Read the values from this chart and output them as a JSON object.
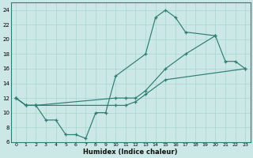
{
  "xlabel": "Humidex (Indice chaleur)",
  "bg_color": "#cce8e6",
  "line_color": "#2d7d72",
  "grid_color": "#a8d4d0",
  "xlim": [
    -0.5,
    23.5
  ],
  "ylim": [
    6,
    25
  ],
  "xticks": [
    0,
    1,
    2,
    3,
    4,
    5,
    6,
    7,
    8,
    9,
    10,
    11,
    12,
    13,
    14,
    15,
    16,
    17,
    18,
    19,
    20,
    21,
    22,
    23
  ],
  "yticks": [
    6,
    8,
    10,
    12,
    14,
    16,
    18,
    20,
    22,
    24
  ],
  "line1_x": [
    0,
    1,
    2,
    3,
    4,
    5,
    6,
    7,
    8,
    9,
    10,
    13,
    14,
    15,
    16,
    17,
    20
  ],
  "line1_y": [
    12,
    11,
    11,
    9,
    9,
    7,
    7,
    6.5,
    10,
    10,
    15,
    18,
    23,
    24,
    23,
    21,
    20.5
  ],
  "line2_x": [
    0,
    1,
    2,
    10,
    11,
    12,
    13,
    15,
    17,
    20,
    21,
    22,
    23
  ],
  "line2_y": [
    12,
    11,
    11,
    12,
    12,
    12,
    13,
    16,
    18,
    20.5,
    17,
    17,
    16
  ],
  "line3_x": [
    0,
    1,
    2,
    10,
    11,
    12,
    13,
    15,
    23
  ],
  "line3_y": [
    12,
    11,
    11,
    11,
    11,
    11.5,
    12.5,
    14.5,
    16
  ]
}
